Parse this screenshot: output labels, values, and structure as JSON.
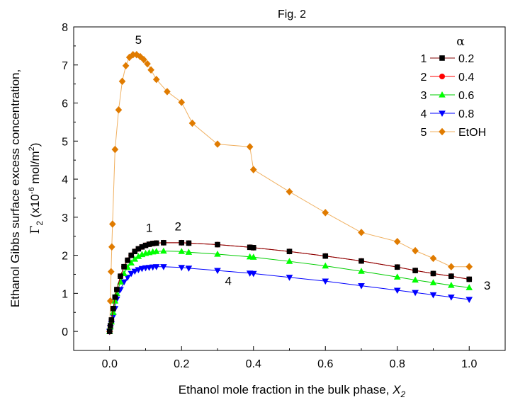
{
  "chart_data": {
    "type": "line",
    "title": "Fig. 2",
    "xlabel_main": "Ethanol mole fraction in the bulk phase, ",
    "xlabel_var": "X",
    "xlabel_sub": "2",
    "ylabel_line1": "Ethanol Gibbs surface excess concentration,",
    "ylabel_sym": "Γ",
    "ylabel_sub": "2",
    "ylabel_unit_pre": " (x10",
    "ylabel_exp": "-6",
    "ylabel_unit_mid": " mol/m",
    "ylabel_exp2": "2",
    "ylabel_unit_post": ")",
    "xlim": [
      -0.1,
      1.1
    ],
    "ylim": [
      -0.5,
      8
    ],
    "xticks": [
      0.0,
      0.2,
      0.4,
      0.6,
      0.8,
      1.0
    ],
    "xtick_labels": [
      "0.0",
      "0.2",
      "0.4",
      "0.6",
      "0.8",
      "1.0"
    ],
    "yticks": [
      0,
      1,
      2,
      3,
      4,
      5,
      6,
      7,
      8
    ],
    "ytick_labels": [
      "0",
      "1",
      "2",
      "3",
      "4",
      "5",
      "6",
      "7",
      "8"
    ],
    "grid": false,
    "legend_position": "top-right",
    "legend_header": "α",
    "series": [
      {
        "id": "1",
        "name": "0.2",
        "color": "#000000",
        "line_color": "#800000",
        "marker": "square",
        "x": [
          0,
          0.002,
          0.005,
          0.01,
          0.015,
          0.02,
          0.03,
          0.04,
          0.05,
          0.06,
          0.07,
          0.08,
          0.09,
          0.1,
          0.11,
          0.12,
          0.13,
          0.15,
          0.2,
          0.22,
          0.3,
          0.39,
          0.4,
          0.5,
          0.6,
          0.7,
          0.8,
          0.85,
          0.9,
          0.95,
          1.0
        ],
        "y": [
          0,
          0.15,
          0.3,
          0.6,
          0.9,
          1.1,
          1.45,
          1.7,
          1.87,
          2.0,
          2.1,
          2.17,
          2.22,
          2.26,
          2.29,
          2.31,
          2.32,
          2.33,
          2.33,
          2.32,
          2.28,
          2.21,
          2.2,
          2.1,
          1.98,
          1.85,
          1.69,
          1.6,
          1.52,
          1.45,
          1.37
        ]
      },
      {
        "id": "2",
        "name": "0.4",
        "color": "#ff0000",
        "line_color": "#ff0000",
        "marker": "circle",
        "x": [
          0,
          0.002,
          0.005,
          0.01,
          0.015,
          0.02,
          0.03,
          0.04,
          0.05,
          0.06,
          0.07,
          0.08,
          0.09,
          0.1,
          0.11,
          0.12,
          0.13,
          0.15,
          0.2,
          0.22,
          0.3,
          0.39,
          0.4,
          0.5,
          0.6,
          0.7,
          0.8,
          0.85,
          0.9,
          0.95,
          1.0
        ],
        "y": [
          0,
          0.15,
          0.3,
          0.6,
          0.9,
          1.1,
          1.45,
          1.7,
          1.87,
          2.0,
          2.1,
          2.17,
          2.22,
          2.26,
          2.29,
          2.31,
          2.32,
          2.33,
          2.33,
          2.32,
          2.28,
          2.21,
          2.2,
          2.1,
          1.98,
          1.85,
          1.69,
          1.6,
          1.52,
          1.45,
          1.37
        ]
      },
      {
        "id": "3",
        "name": "0.6",
        "color": "#00ff00",
        "line_color": "#00cc00",
        "marker": "triangle-up",
        "x": [
          0,
          0.002,
          0.005,
          0.01,
          0.015,
          0.02,
          0.03,
          0.04,
          0.05,
          0.06,
          0.07,
          0.08,
          0.09,
          0.1,
          0.11,
          0.12,
          0.13,
          0.15,
          0.2,
          0.22,
          0.3,
          0.39,
          0.4,
          0.5,
          0.6,
          0.7,
          0.8,
          0.85,
          0.9,
          0.95,
          1.0
        ],
        "y": [
          0,
          0.12,
          0.25,
          0.5,
          0.8,
          1.0,
          1.3,
          1.52,
          1.68,
          1.8,
          1.9,
          1.97,
          2.02,
          2.05,
          2.07,
          2.09,
          2.1,
          2.11,
          2.1,
          2.08,
          2.03,
          1.96,
          1.95,
          1.84,
          1.72,
          1.58,
          1.43,
          1.35,
          1.28,
          1.21,
          1.15
        ]
      },
      {
        "id": "4",
        "name": "0.8",
        "color": "#0000ff",
        "line_color": "#0000ff",
        "marker": "triangle-down",
        "x": [
          0,
          0.002,
          0.005,
          0.01,
          0.015,
          0.02,
          0.03,
          0.04,
          0.05,
          0.06,
          0.07,
          0.08,
          0.09,
          0.1,
          0.11,
          0.12,
          0.13,
          0.15,
          0.2,
          0.22,
          0.3,
          0.39,
          0.4,
          0.5,
          0.6,
          0.7,
          0.8,
          0.85,
          0.9,
          0.95,
          1.0
        ],
        "y": [
          0,
          0.1,
          0.2,
          0.4,
          0.6,
          0.85,
          1.1,
          1.3,
          1.42,
          1.52,
          1.58,
          1.62,
          1.65,
          1.67,
          1.68,
          1.69,
          1.7,
          1.7,
          1.68,
          1.66,
          1.6,
          1.53,
          1.52,
          1.42,
          1.32,
          1.2,
          1.08,
          1.02,
          0.96,
          0.9,
          0.84
        ]
      },
      {
        "id": "5",
        "name": "EtOH",
        "color": "#e07b00",
        "line_color": "#f0b060",
        "marker": "diamond",
        "x": [
          0,
          0.002,
          0.004,
          0.006,
          0.008,
          0.015,
          0.025,
          0.035,
          0.045,
          0.055,
          0.065,
          0.075,
          0.085,
          0.095,
          0.105,
          0.115,
          0.13,
          0.16,
          0.2,
          0.23,
          0.3,
          0.39,
          0.4,
          0.5,
          0.6,
          0.7,
          0.8,
          0.85,
          0.9,
          0.95,
          1.0
        ],
        "y": [
          0,
          0.8,
          1.57,
          2.22,
          2.82,
          4.78,
          5.82,
          6.57,
          6.98,
          7.2,
          7.27,
          7.27,
          7.22,
          7.14,
          7.03,
          6.87,
          6.62,
          6.3,
          6.02,
          5.47,
          4.92,
          4.85,
          4.25,
          3.67,
          3.12,
          2.6,
          2.36,
          2.12,
          1.92,
          1.7,
          1.7
        ]
      }
    ],
    "annotations": [
      {
        "text": "5",
        "x": 0.08,
        "y": 7.55
      },
      {
        "text": "1",
        "x": 0.11,
        "y": 2.62
      },
      {
        "text": "2",
        "x": 0.19,
        "y": 2.65
      },
      {
        "text": "4",
        "x": 0.33,
        "y": 1.22
      },
      {
        "text": "3",
        "x": 1.05,
        "y": 1.1
      }
    ]
  }
}
